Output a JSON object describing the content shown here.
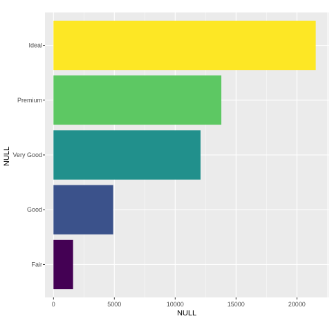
{
  "chart_data": {
    "type": "bar",
    "orientation": "horizontal",
    "categories": [
      "Fair",
      "Good",
      "Very Good",
      "Premium",
      "Ideal"
    ],
    "values": [
      1610,
      4906,
      12082,
      13791,
      21551
    ],
    "colors": [
      "#440154",
      "#3b528b",
      "#21908c",
      "#5dc863",
      "#fde725"
    ],
    "xlabel": "NULL",
    "ylabel": "NULL",
    "xlim": [
      -700,
      22600
    ],
    "xticks": [
      0,
      5000,
      10000,
      15000,
      20000
    ],
    "xtick_labels": [
      "0",
      "5000",
      "10000",
      "15000",
      "20000"
    ],
    "grid": true,
    "legend": "none",
    "panel_background": "#ebebeb",
    "grid_color": "#ffffff"
  }
}
